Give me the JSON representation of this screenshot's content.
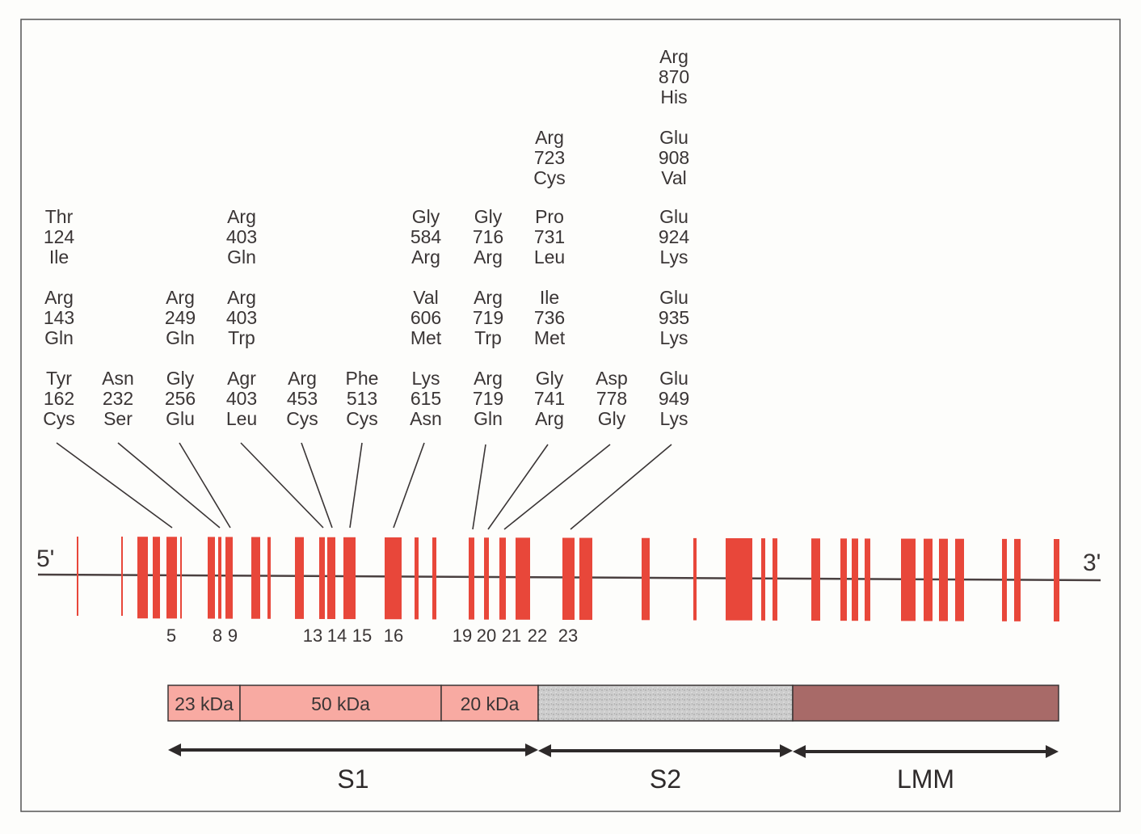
{
  "gene_ends": {
    "five_prime": "5'",
    "three_prime": "3'"
  },
  "mutations": [
    {
      "col": 0,
      "row": 2,
      "wt": "Thr",
      "pos": "124",
      "mut": "Ile"
    },
    {
      "col": 0,
      "row": 3,
      "wt": "Arg",
      "pos": "143",
      "mut": "Gln"
    },
    {
      "col": 0,
      "row": 4,
      "wt": "Tyr",
      "pos": "162",
      "mut": "Cys"
    },
    {
      "col": 1,
      "row": 4,
      "wt": "Asn",
      "pos": "232",
      "mut": "Ser"
    },
    {
      "col": 2,
      "row": 3,
      "wt": "Arg",
      "pos": "249",
      "mut": "Gln"
    },
    {
      "col": 2,
      "row": 4,
      "wt": "Gly",
      "pos": "256",
      "mut": "Glu"
    },
    {
      "col": 3,
      "row": 2,
      "wt": "Arg",
      "pos": "403",
      "mut": "Gln"
    },
    {
      "col": 3,
      "row": 3,
      "wt": "Arg",
      "pos": "403",
      "mut": "Trp"
    },
    {
      "col": 3,
      "row": 4,
      "wt": "Agr",
      "pos": "403",
      "mut": "Leu"
    },
    {
      "col": 4,
      "row": 4,
      "wt": "Arg",
      "pos": "453",
      "mut": "Cys"
    },
    {
      "col": 5,
      "row": 4,
      "wt": "Phe",
      "pos": "513",
      "mut": "Cys"
    },
    {
      "col": 6,
      "row": 2,
      "wt": "Gly",
      "pos": "584",
      "mut": "Arg"
    },
    {
      "col": 6,
      "row": 3,
      "wt": "Val",
      "pos": "606",
      "mut": "Met"
    },
    {
      "col": 6,
      "row": 4,
      "wt": "Lys",
      "pos": "615",
      "mut": "Asn"
    },
    {
      "col": 7,
      "row": 2,
      "wt": "Gly",
      "pos": "716",
      "mut": "Arg"
    },
    {
      "col": 7,
      "row": 3,
      "wt": "Arg",
      "pos": "719",
      "mut": "Trp"
    },
    {
      "col": 7,
      "row": 4,
      "wt": "Arg",
      "pos": "719",
      "mut": "Gln"
    },
    {
      "col": 8,
      "row": 1,
      "wt": "Arg",
      "pos": "723",
      "mut": "Cys"
    },
    {
      "col": 8,
      "row": 2,
      "wt": "Pro",
      "pos": "731",
      "mut": "Leu"
    },
    {
      "col": 8,
      "row": 3,
      "wt": "Ile",
      "pos": "736",
      "mut": "Met"
    },
    {
      "col": 8,
      "row": 4,
      "wt": "Gly",
      "pos": "741",
      "mut": "Arg"
    },
    {
      "col": 9,
      "row": 4,
      "wt": "Asp",
      "pos": "778",
      "mut": "Gly"
    },
    {
      "col": 10,
      "row": 0,
      "wt": "Arg",
      "pos": "870",
      "mut": "His"
    },
    {
      "col": 10,
      "row": 1,
      "wt": "Glu",
      "pos": "908",
      "mut": "Val"
    },
    {
      "col": 10,
      "row": 2,
      "wt": "Glu",
      "pos": "924",
      "mut": "Lys"
    },
    {
      "col": 10,
      "row": 3,
      "wt": "Glu",
      "pos": "935",
      "mut": "Lys"
    },
    {
      "col": 10,
      "row": 4,
      "wt": "Glu",
      "pos": "949",
      "mut": "Lys"
    }
  ],
  "exon_labels": [
    "5",
    "8",
    "9",
    "13",
    "14",
    "15",
    "16",
    "19",
    "20",
    "21",
    "22",
    "23"
  ],
  "protein_segments": [
    {
      "label": "23 kDa",
      "color": "#f8aaa2"
    },
    {
      "label": "50 kDa",
      "color": "#f8aaa2"
    },
    {
      "label": "20 kDa",
      "color": "#f8aaa2"
    },
    {
      "label": "",
      "color": "#c9c9c9"
    },
    {
      "label": "",
      "color": "#a86a68"
    }
  ],
  "domains": [
    {
      "label": "S1"
    },
    {
      "label": "S2"
    },
    {
      "label": "LMM"
    }
  ],
  "colors": {
    "exon": "#e8473a",
    "line": "#4a4040",
    "text": "#3a3535"
  }
}
